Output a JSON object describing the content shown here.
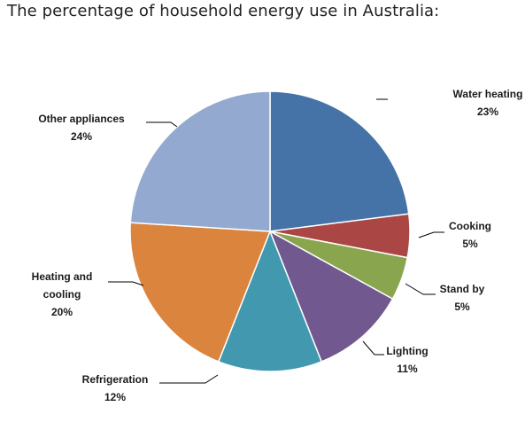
{
  "page": {
    "title": "The percentage of household energy use in Australia:"
  },
  "chart_data": {
    "type": "pie",
    "title": "The percentage of household energy use in Australia:",
    "start_angle_deg": 0,
    "direction": "clockwise",
    "slices": [
      {
        "name": "Water heating",
        "value": 23,
        "label": "23%",
        "color": "#4572A7"
      },
      {
        "name": "Cooking",
        "value": 5,
        "label": "5%",
        "color": "#AA4643"
      },
      {
        "name": "Stand by",
        "value": 5,
        "label": "5%",
        "color": "#89A54E"
      },
      {
        "name": "Lighting",
        "value": 11,
        "label": "11%",
        "color": "#71588F"
      },
      {
        "name": "Refrigeration",
        "value": 12,
        "label": "12%",
        "color": "#4198AF"
      },
      {
        "name": "Heating and cooling",
        "value": 20,
        "label": "20%",
        "color": "#DB843D"
      },
      {
        "name": "Other appliances",
        "value": 24,
        "label": "24%",
        "color": "#93A9CF"
      }
    ]
  }
}
